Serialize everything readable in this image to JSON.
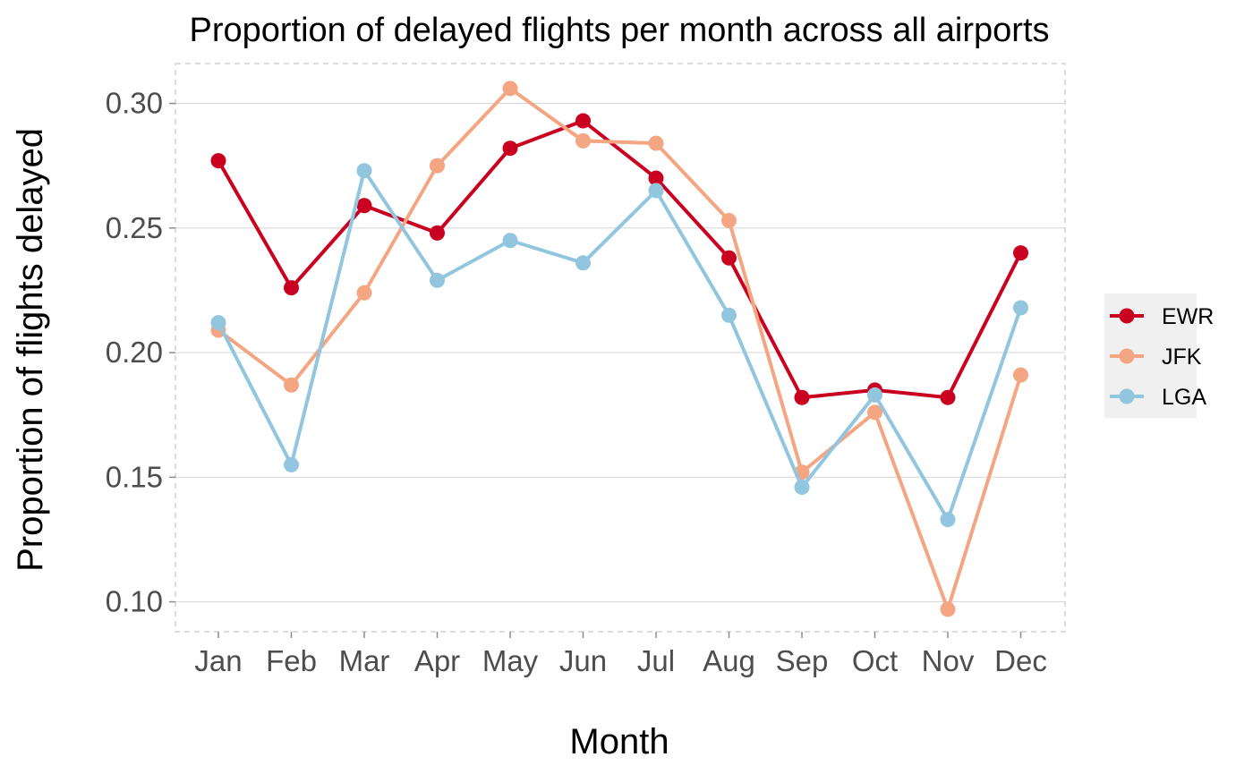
{
  "chart_data": {
    "type": "line",
    "title": "Proportion of delayed flights per month across all airports",
    "xlabel": "Month",
    "ylabel": "Proportion of flights delayed",
    "categories": [
      "Jan",
      "Feb",
      "Mar",
      "Apr",
      "May",
      "Jun",
      "Jul",
      "Aug",
      "Sep",
      "Oct",
      "Nov",
      "Dec"
    ],
    "ylim": [
      0.088,
      0.316
    ],
    "yticks": [
      0.1,
      0.15,
      0.2,
      0.25,
      0.3
    ],
    "ytick_labels": [
      "0.10",
      "0.15",
      "0.20",
      "0.25",
      "0.30"
    ],
    "grid": true,
    "legend_position": "right",
    "series": [
      {
        "name": "EWR",
        "color": "#ca0020",
        "values": [
          0.277,
          0.226,
          0.259,
          0.248,
          0.282,
          0.293,
          0.27,
          0.238,
          0.182,
          0.185,
          0.182,
          0.24
        ]
      },
      {
        "name": "JFK",
        "color": "#f4a582",
        "values": [
          0.209,
          0.187,
          0.224,
          0.275,
          0.306,
          0.285,
          0.284,
          0.253,
          0.152,
          0.176,
          0.097,
          0.191
        ]
      },
      {
        "name": "LGA",
        "color": "#92c5de",
        "values": [
          0.212,
          0.155,
          0.273,
          0.229,
          0.245,
          0.236,
          0.265,
          0.215,
          0.146,
          0.183,
          0.133,
          0.218
        ]
      }
    ]
  }
}
